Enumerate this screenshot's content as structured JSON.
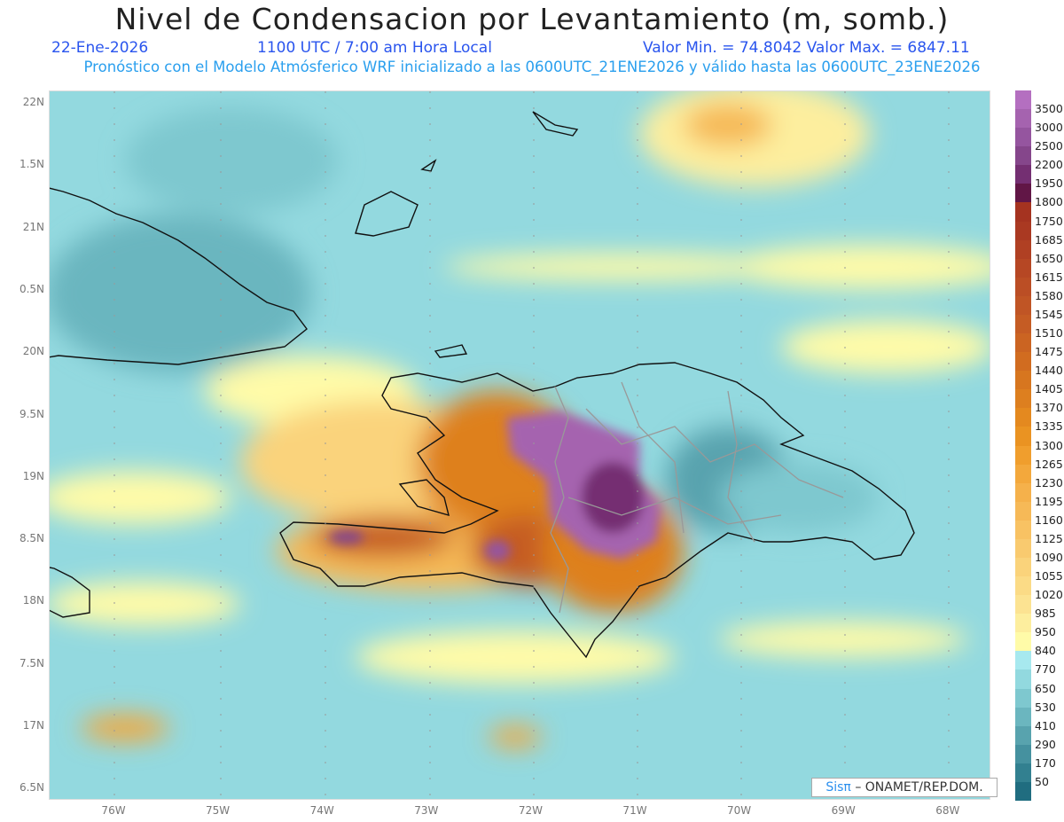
{
  "header": {
    "title": "Nivel de Condensacion por Levantamiento (m, somb.)",
    "date": "22-Ene-2026",
    "time": "1100 UTC / 7:00 am Hora Local",
    "min_max": "Valor Min. = 74.8042  Valor Max. = 6847.11",
    "subtitle": "Pronóstico con el Modelo Atmósferico WRF inicializado a las 0600UTC_21ENE2026 y válido hasta las  0600UTC_23ENE2026"
  },
  "axes": {
    "lat_labels": [
      "22N",
      "1.5N",
      "21N",
      "0.5N",
      "20N",
      "9.5N",
      "19N",
      "8.5N",
      "18N",
      "7.5N",
      "17N",
      "6.5N"
    ],
    "lon_labels": [
      "76W",
      "75W",
      "74W",
      "73W",
      "72W",
      "71W",
      "70W",
      "69W",
      "68W"
    ]
  },
  "colorbar": {
    "labels": [
      "3500",
      "3000",
      "2500",
      "2200",
      "1950",
      "1800",
      "1750",
      "1685",
      "1650",
      "1615",
      "1580",
      "1545",
      "1510",
      "1475",
      "1440",
      "1405",
      "1370",
      "1335",
      "1300",
      "1265",
      "1230",
      "1195",
      "1160",
      "1125",
      "1090",
      "1055",
      "1020",
      "985",
      "950",
      "840",
      "770",
      "650",
      "530",
      "410",
      "290",
      "170",
      "50"
    ],
    "colors": [
      "#b46fc0",
      "#a563af",
      "#95559f",
      "#85468b",
      "#742f72",
      "#611646",
      "#a53320",
      "#aa3922",
      "#b04023",
      "#b64724",
      "#bb4e25",
      "#c05525",
      "#c55c24",
      "#cb6422",
      "#d16c20",
      "#d7761f",
      "#dd7f1f",
      "#e4891f",
      "#ea9322",
      "#f09e2d",
      "#f3a83c",
      "#f5b14b",
      "#f6b957",
      "#f8c263",
      "#f9ca6f",
      "#fad37b",
      "#fbdb86",
      "#fce392",
      "#fdee9e",
      "#fffba8",
      "#a7e9ef",
      "#92d9df",
      "#7ec8cf",
      "#6bb6bf",
      "#58a3ae",
      "#45919f",
      "#328090",
      "#206d80"
    ]
  },
  "credit": {
    "brand": "Sisπ",
    "text": "– ONAMET/REP.DOM."
  }
}
